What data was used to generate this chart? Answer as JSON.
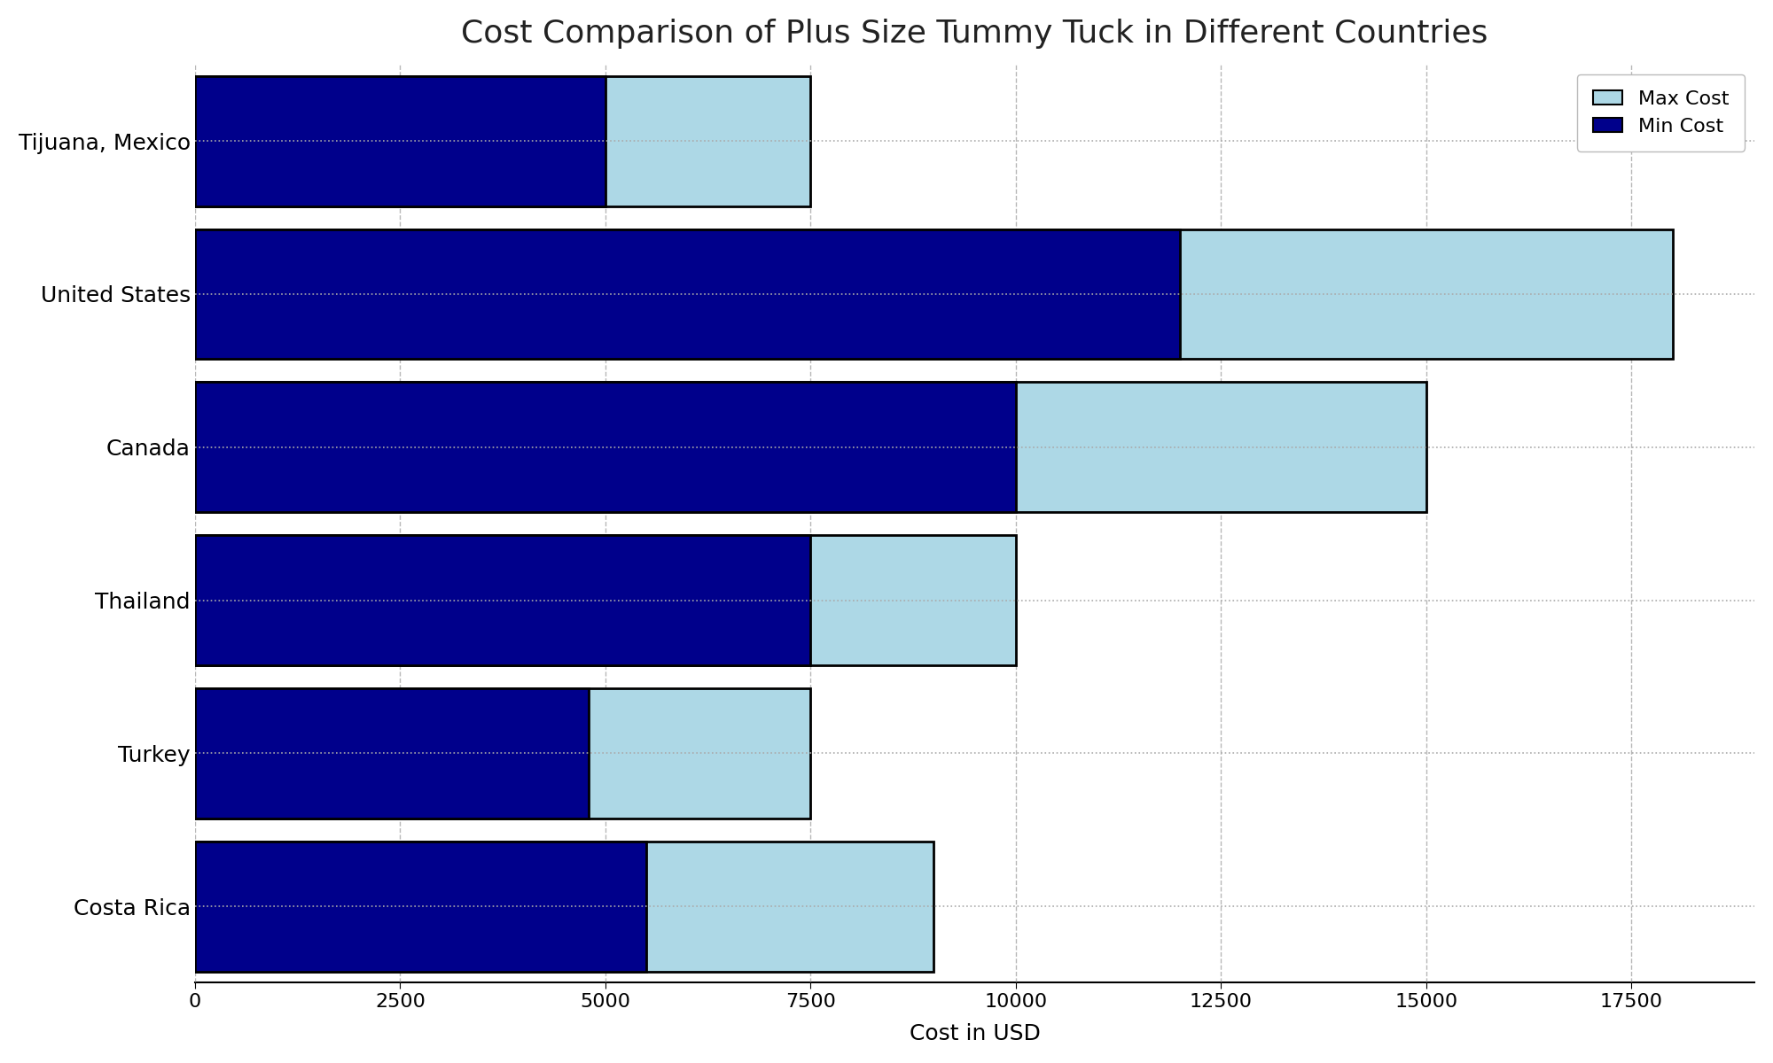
{
  "countries": [
    "Costa Rica",
    "Turkey",
    "Thailand",
    "Canada",
    "United States",
    "Tijuana, Mexico"
  ],
  "min_costs": [
    5500,
    4800,
    7500,
    10000,
    12000,
    5000
  ],
  "max_costs": [
    9000,
    7500,
    10000,
    15000,
    18000,
    7500
  ],
  "min_color": "#00008B",
  "max_color": "#ADD8E6",
  "title": "Cost Comparison of Plus Size Tummy Tuck in Different Countries",
  "xlabel": "Cost in USD",
  "xlim": [
    0,
    19000
  ],
  "xticks": [
    0,
    2500,
    5000,
    7500,
    10000,
    12500,
    15000,
    17500
  ],
  "title_fontsize": 26,
  "label_fontsize": 18,
  "tick_fontsize": 16,
  "ytick_fontsize": 18,
  "bar_height": 0.85,
  "legend_labels": [
    "Max Cost",
    "Min Cost"
  ],
  "background_color": "#ffffff",
  "grid_color": "#888888",
  "bar_edgecolor": "#000000",
  "hline_color": "#aaaaaa",
  "hline_inner_color": "#c08080"
}
